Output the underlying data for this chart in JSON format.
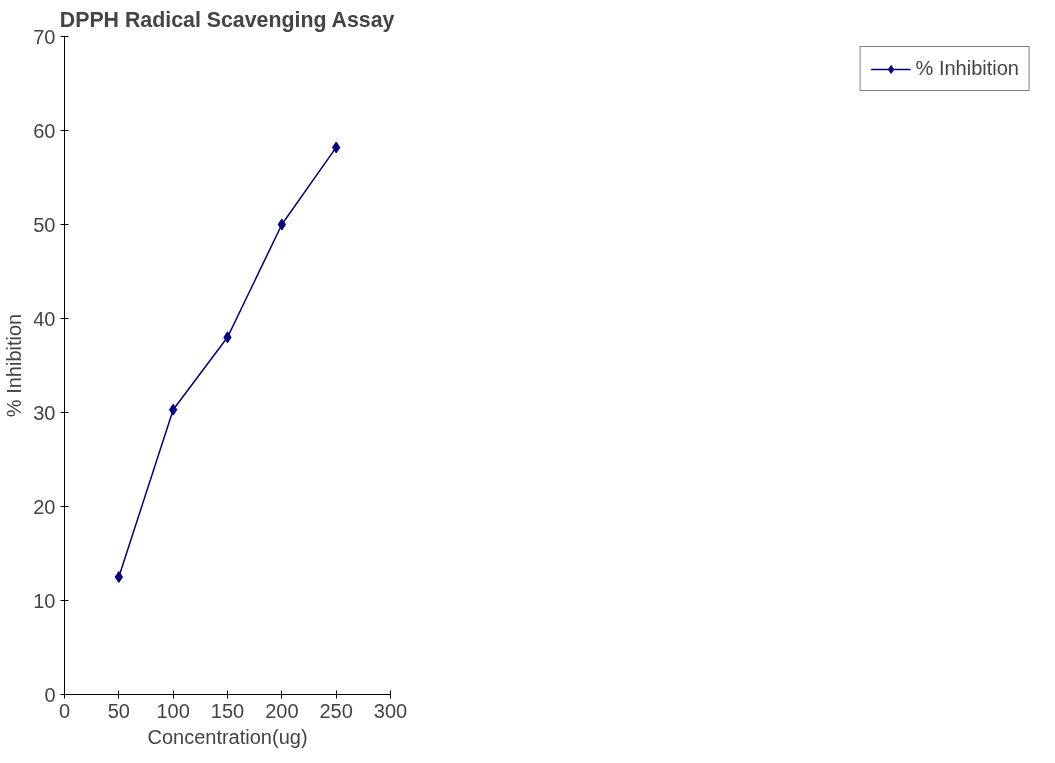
{
  "chart_data": {
    "type": "line",
    "title": "DPPH Radical Scavenging Assay",
    "xlabel": "Concentration(ug)",
    "ylabel": "% Inhibition",
    "x": [
      50,
      100,
      150,
      200,
      250
    ],
    "series": [
      {
        "name": "% Inhibition",
        "color": "#000080",
        "values": [
          12.5,
          30.3,
          38,
          50,
          58.2
        ]
      }
    ],
    "xlim": [
      0,
      300
    ],
    "xticks": [
      0,
      50,
      100,
      150,
      200,
      250,
      300
    ],
    "ylim": [
      0,
      70
    ],
    "yticks": [
      0,
      10,
      20,
      30,
      40,
      50,
      60,
      70
    ],
    "grid": false,
    "legend": "right",
    "marker": "diamond",
    "line_style": "solid"
  }
}
